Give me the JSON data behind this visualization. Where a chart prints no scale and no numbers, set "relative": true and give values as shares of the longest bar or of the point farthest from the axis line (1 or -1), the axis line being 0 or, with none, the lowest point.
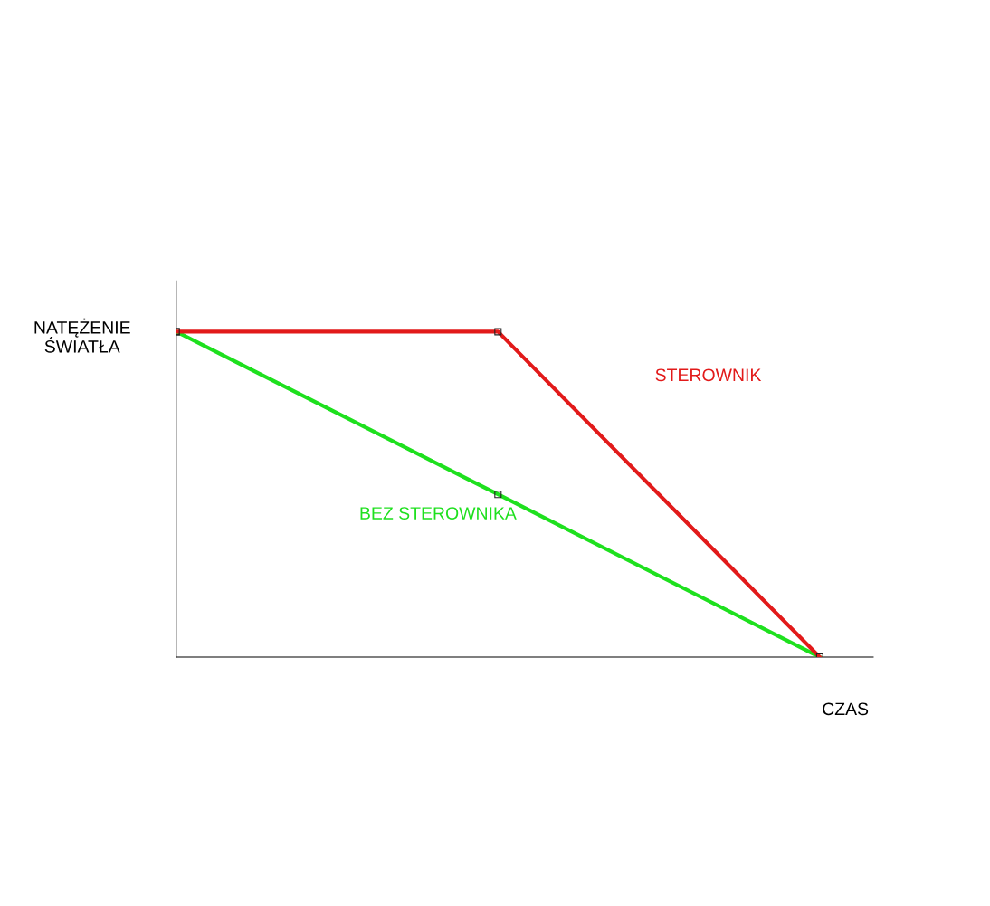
{
  "chart_data": {
    "type": "line",
    "relative": true,
    "xlabel": "CZAS",
    "ylabel": "NATĘŻENIE\nŚWIATŁA",
    "marker": "square",
    "line_style": "solid",
    "categories": [
      null,
      null,
      null
    ],
    "series": [
      {
        "name": "STEROWNIK",
        "color": "#e21a1a",
        "values": [
          1,
          1,
          0
        ]
      },
      {
        "name": "BEZ STEROWNIKA",
        "color": "#1ee01e",
        "values": [
          1,
          0.5,
          0
        ]
      }
    ]
  }
}
